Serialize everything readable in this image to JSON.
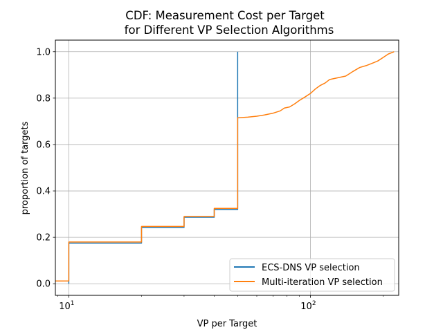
{
  "chart_data": {
    "type": "line",
    "title_line1": "CDF: Measurement Cost per Target",
    "title_line2": "for Different VP Selection Algorithms",
    "xlabel": "VP per Target",
    "ylabel": "proportion of targets",
    "xscale": "log",
    "xlim": [
      8.8,
      232
    ],
    "ylim": [
      -0.05,
      1.05
    ],
    "xticks": [
      {
        "value": 10,
        "base": "10",
        "exp": "1"
      },
      {
        "value": 100,
        "base": "10",
        "exp": "2"
      }
    ],
    "yticks": [
      0.0,
      0.2,
      0.4,
      0.6,
      0.8,
      1.0
    ],
    "ytick_labels": [
      "0.0",
      "0.2",
      "0.4",
      "0.6",
      "0.8",
      "1.0"
    ],
    "grid": true,
    "legend_position": "lower-right",
    "series": [
      {
        "name": "ECS-DNS VP selection",
        "color": "#1f77b4",
        "points": [
          [
            10,
            0.0
          ],
          [
            10,
            0.175
          ],
          [
            20,
            0.175
          ],
          [
            20,
            0.243
          ],
          [
            30,
            0.243
          ],
          [
            30,
            0.287
          ],
          [
            40,
            0.287
          ],
          [
            40,
            0.32
          ],
          [
            50,
            0.32
          ],
          [
            50,
            1.0
          ]
        ]
      },
      {
        "name": "Multi-iteration VP selection",
        "color": "#ff7f0e",
        "points": [
          [
            8.8,
            0.012
          ],
          [
            10,
            0.012
          ],
          [
            10,
            0.18
          ],
          [
            20,
            0.18
          ],
          [
            20,
            0.247
          ],
          [
            30,
            0.247
          ],
          [
            30,
            0.29
          ],
          [
            40,
            0.29
          ],
          [
            40,
            0.325
          ],
          [
            50,
            0.325
          ],
          [
            50,
            0.715
          ],
          [
            55,
            0.718
          ],
          [
            60,
            0.722
          ],
          [
            65,
            0.728
          ],
          [
            70,
            0.735
          ],
          [
            75,
            0.745
          ],
          [
            78,
            0.757
          ],
          [
            82,
            0.762
          ],
          [
            86,
            0.775
          ],
          [
            90,
            0.79
          ],
          [
            95,
            0.805
          ],
          [
            100,
            0.82
          ],
          [
            105,
            0.84
          ],
          [
            110,
            0.855
          ],
          [
            115,
            0.865
          ],
          [
            120,
            0.88
          ],
          [
            130,
            0.888
          ],
          [
            140,
            0.895
          ],
          [
            145,
            0.905
          ],
          [
            150,
            0.915
          ],
          [
            160,
            0.932
          ],
          [
            170,
            0.94
          ],
          [
            180,
            0.95
          ],
          [
            190,
            0.96
          ],
          [
            200,
            0.975
          ],
          [
            210,
            0.99
          ],
          [
            222,
            1.0
          ]
        ]
      }
    ]
  }
}
